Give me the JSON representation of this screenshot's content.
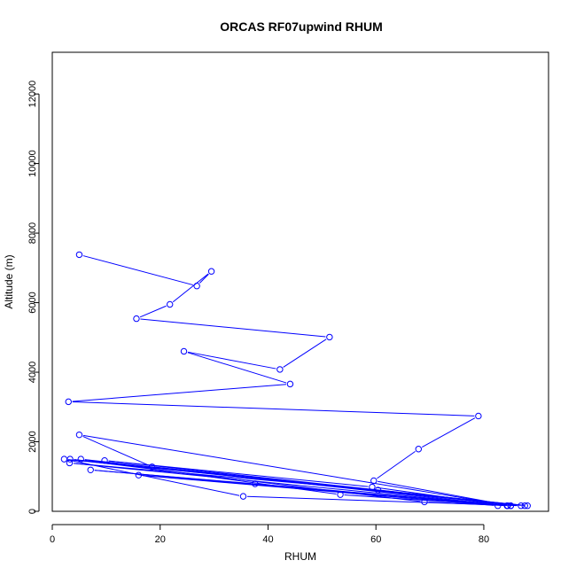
{
  "chart_data": {
    "type": "line",
    "title": "ORCAS RF07upwind RHUM",
    "xlabel": "RHUM",
    "ylabel": "Altitude (m)",
    "xlim": [
      0,
      92
    ],
    "ylim": [
      0,
      13200
    ],
    "x_ticks": [
      0,
      20,
      40,
      60,
      80
    ],
    "y_ticks": [
      0,
      2000,
      4000,
      6000,
      8000,
      10000,
      12000
    ],
    "color": "#0000ff",
    "grid": false,
    "marker": "open-circle",
    "series": [
      {
        "points": [
          [
            5.0,
            7380
          ],
          [
            26.8,
            6480
          ],
          [
            29.5,
            6900
          ],
          [
            21.8,
            5950
          ],
          [
            15.6,
            5540
          ],
          [
            51.4,
            5010
          ],
          [
            42.2,
            4080
          ],
          [
            24.4,
            4600
          ],
          [
            44.1,
            3660
          ],
          [
            3.0,
            3150
          ],
          [
            79.0,
            2740
          ],
          [
            67.9,
            1790
          ],
          [
            59.6,
            880
          ],
          [
            85.0,
            160
          ],
          [
            5.0,
            2200
          ],
          [
            18.5,
            1280
          ],
          [
            88.1,
            160
          ],
          [
            2.2,
            1500
          ],
          [
            35.4,
            430
          ],
          [
            86.9,
            160
          ],
          [
            3.3,
            1500
          ],
          [
            69.0,
            270
          ],
          [
            84.4,
            160
          ],
          [
            5.3,
            1500
          ],
          [
            53.4,
            480
          ],
          [
            84.4,
            160
          ],
          [
            3.2,
            1390
          ],
          [
            60.4,
            610
          ],
          [
            87.6,
            160
          ],
          [
            9.7,
            1460
          ],
          [
            59.3,
            700
          ],
          [
            84.3,
            160
          ],
          [
            7.1,
            1190
          ],
          [
            37.6,
            790
          ],
          [
            85.0,
            160
          ],
          [
            16.0,
            1040
          ],
          [
            82.6,
            160
          ]
        ]
      }
    ]
  }
}
